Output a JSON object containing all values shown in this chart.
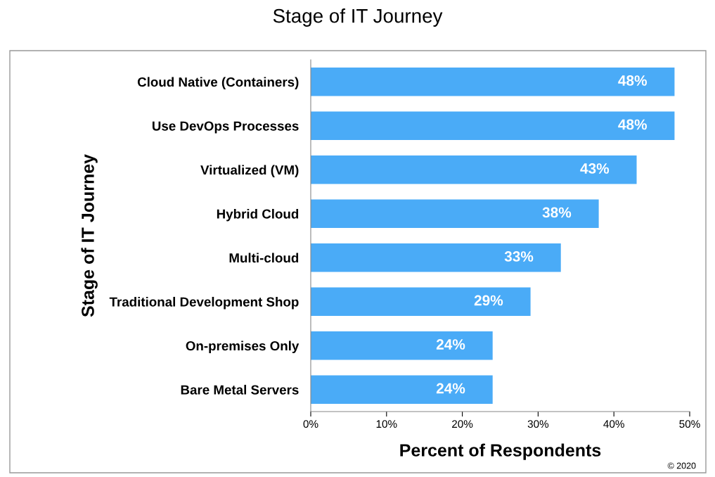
{
  "chart_data": {
    "type": "bar",
    "orientation": "horizontal",
    "title": "Stage of IT Journey",
    "ylabel": "Stage of IT Journey",
    "xlabel": "Percent of Respondents",
    "categories": [
      "Cloud Native (Containers)",
      "Use DevOps Processes",
      "Virtualized (VM)",
      "Hybrid Cloud",
      "Multi-cloud",
      "Traditional Development Shop",
      "On-premises Only",
      "Bare Metal Servers"
    ],
    "values": [
      48,
      48,
      43,
      38,
      33,
      29,
      24,
      24
    ],
    "color": "#4aabf7",
    "value_labels": [
      "48%",
      "48%",
      "43%",
      "38%",
      "33%",
      "29%",
      "24%",
      "24%"
    ],
    "xlim": [
      0,
      50
    ],
    "xticks": [
      {
        "value": 0,
        "label": "0%"
      },
      {
        "value": 10,
        "label": "10%"
      },
      {
        "value": 20,
        "label": "20%"
      },
      {
        "value": 30,
        "label": "30%"
      },
      {
        "value": 40,
        "label": "40%"
      },
      {
        "value": 50,
        "label": "50%"
      }
    ],
    "grid": false,
    "legend": false,
    "annotations": [
      "© 2020"
    ]
  }
}
